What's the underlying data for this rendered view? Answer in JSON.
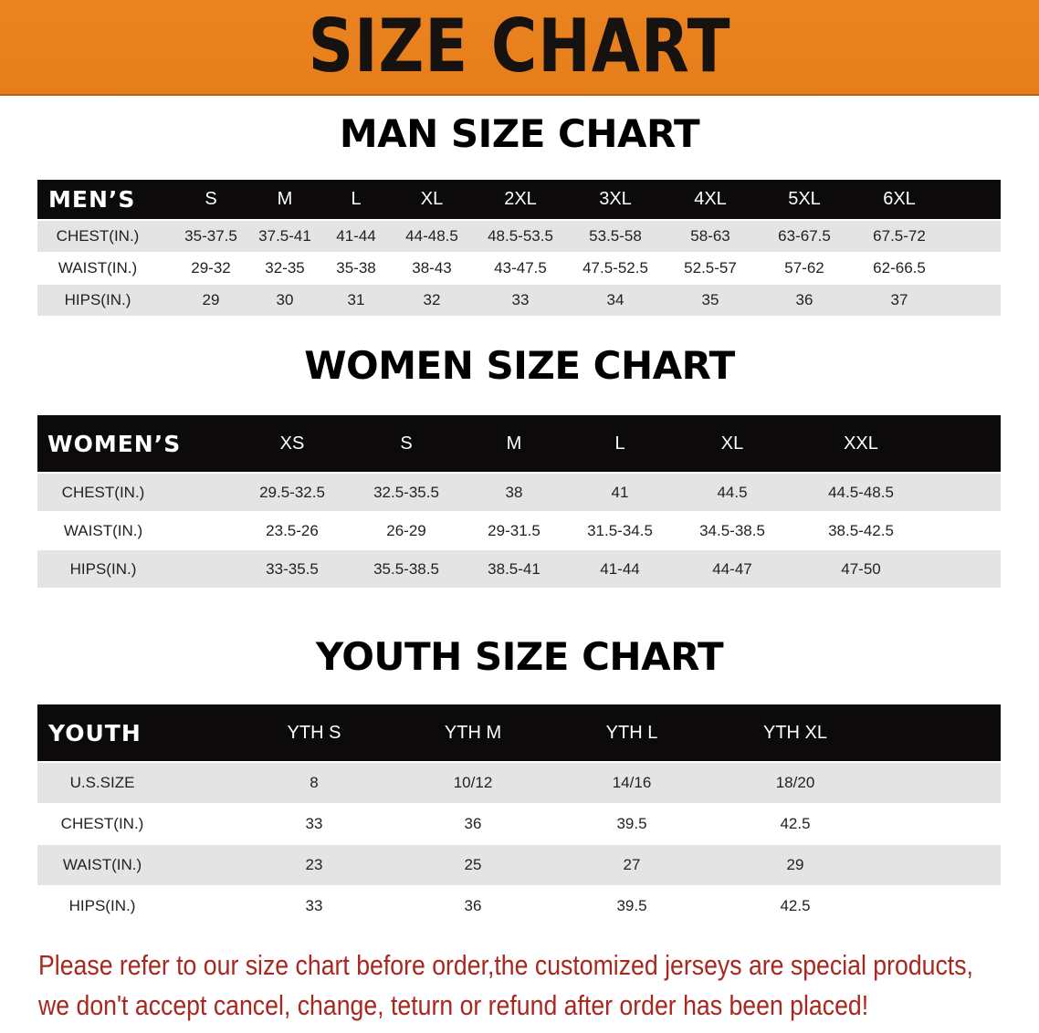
{
  "banner": {
    "title": "SIZE CHART",
    "color": "#e8801e"
  },
  "men": {
    "title": "MAN SIZE CHART",
    "header": [
      "MEN’S",
      "S",
      "M",
      "L",
      "XL",
      "2XL",
      "3XL",
      "4XL",
      "5XL",
      "6XL"
    ],
    "rows": [
      [
        "CHEST(IN.)",
        "35-37.5",
        "37.5-41",
        "41-44",
        "44-48.5",
        "48.5-53.5",
        "53.5-58",
        "58-63",
        "63-67.5",
        "67.5-72"
      ],
      [
        "WAIST(IN.)",
        "29-32",
        "32-35",
        "35-38",
        "38-43",
        "43-47.5",
        "47.5-52.5",
        "52.5-57",
        "57-62",
        "62-66.5"
      ],
      [
        "HIPS(IN.)",
        "29",
        "30",
        "31",
        "32",
        "33",
        "34",
        "35",
        "36",
        "37"
      ]
    ]
  },
  "women": {
    "title": "WOMEN SIZE CHART",
    "header": [
      "WOMEN’S",
      "XS",
      "S",
      "M",
      "L",
      "XL",
      "XXL"
    ],
    "rows": [
      [
        "CHEST(IN.)",
        "29.5-32.5",
        "32.5-35.5",
        "38",
        "41",
        "44.5",
        "44.5-48.5"
      ],
      [
        "WAIST(IN.)",
        "23.5-26",
        "26-29",
        "29-31.5",
        "31.5-34.5",
        "34.5-38.5",
        "38.5-42.5"
      ],
      [
        "HIPS(IN.)",
        "33-35.5",
        "35.5-38.5",
        "38.5-41",
        "41-44",
        "44-47",
        "47-50"
      ]
    ]
  },
  "youth": {
    "title": "YOUTH SIZE CHART",
    "header": [
      "YOUTH",
      "YTH S",
      "YTH M",
      "YTH L",
      "YTH XL"
    ],
    "rows": [
      [
        "U.S.SIZE",
        "8",
        "10/12",
        "14/16",
        "18/20"
      ],
      [
        "CHEST(IN.)",
        "33",
        "36",
        "39.5",
        "42.5"
      ],
      [
        "WAIST(IN.)",
        "23",
        "25",
        "27",
        "29"
      ],
      [
        "HIPS(IN.)",
        "33",
        "36",
        "39.5",
        "42.5"
      ]
    ]
  },
  "footer": {
    "line1": "Please refer to our size chart before order,the customized jerseys are special products,",
    "line2": "we don't accept cancel, change, teturn or refund after order has been placed!",
    "color": "#a82820"
  }
}
